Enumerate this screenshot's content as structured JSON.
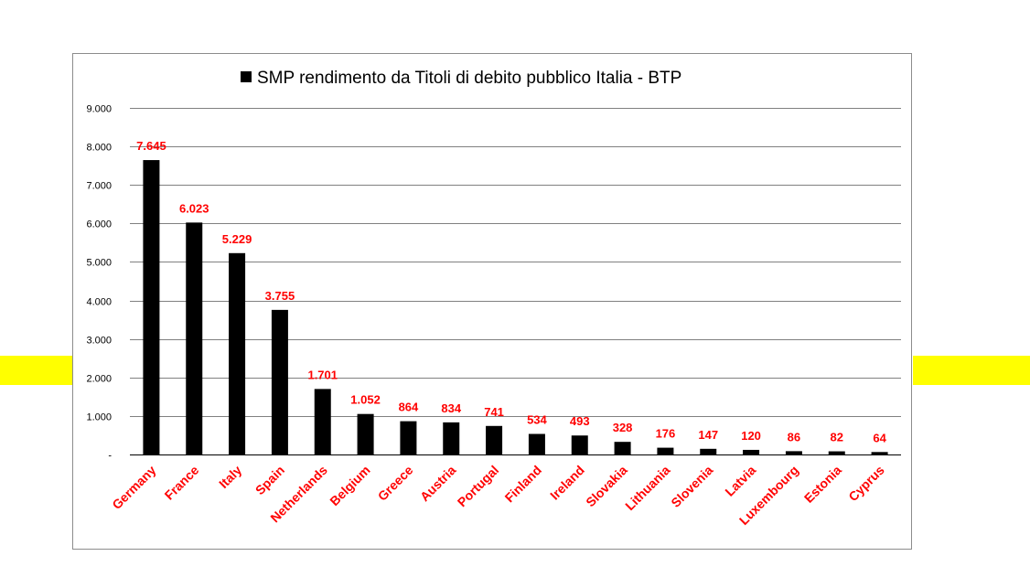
{
  "colors": {
    "band": "#ffff00",
    "bar": "#000000",
    "label_red": "#ff0000",
    "grid": "#808080"
  },
  "chart_data": {
    "type": "bar",
    "title": "SMP rendimento da Titoli di debito pubblico Italia - BTP",
    "legend_position": "top",
    "grid": true,
    "categories": [
      "Germany",
      "France",
      "Italy",
      "Spain",
      "Netherlands",
      "Belgium",
      "Greece",
      "Austria",
      "Portugal",
      "Finland",
      "Ireland",
      "Slovakia",
      "Lithuania",
      "Slovenia",
      "Latvia",
      "Luxembourg",
      "Estonia",
      "Cyprus"
    ],
    "series": [
      {
        "values": [
          7645,
          6023,
          5229,
          3755,
          1701,
          1052,
          864,
          834,
          741,
          534,
          493,
          328,
          176,
          147,
          120,
          86,
          82,
          64
        ],
        "data_labels": [
          "7.645",
          "6.023",
          "5.229",
          "3.755",
          "1.701",
          "1.052",
          "864",
          "834",
          "741",
          "534",
          "493",
          "328",
          "176",
          "147",
          "120",
          "86",
          "82",
          "64"
        ]
      }
    ],
    "ylim": [
      0,
      9000
    ],
    "yticks": [
      0,
      1000,
      2000,
      3000,
      4000,
      5000,
      6000,
      7000,
      8000,
      9000
    ],
    "ytick_labels": [
      "-",
      "1.000",
      "2.000",
      "3.000",
      "4.000",
      "5.000",
      "6.000",
      "7.000",
      "8.000",
      "9.000"
    ]
  }
}
